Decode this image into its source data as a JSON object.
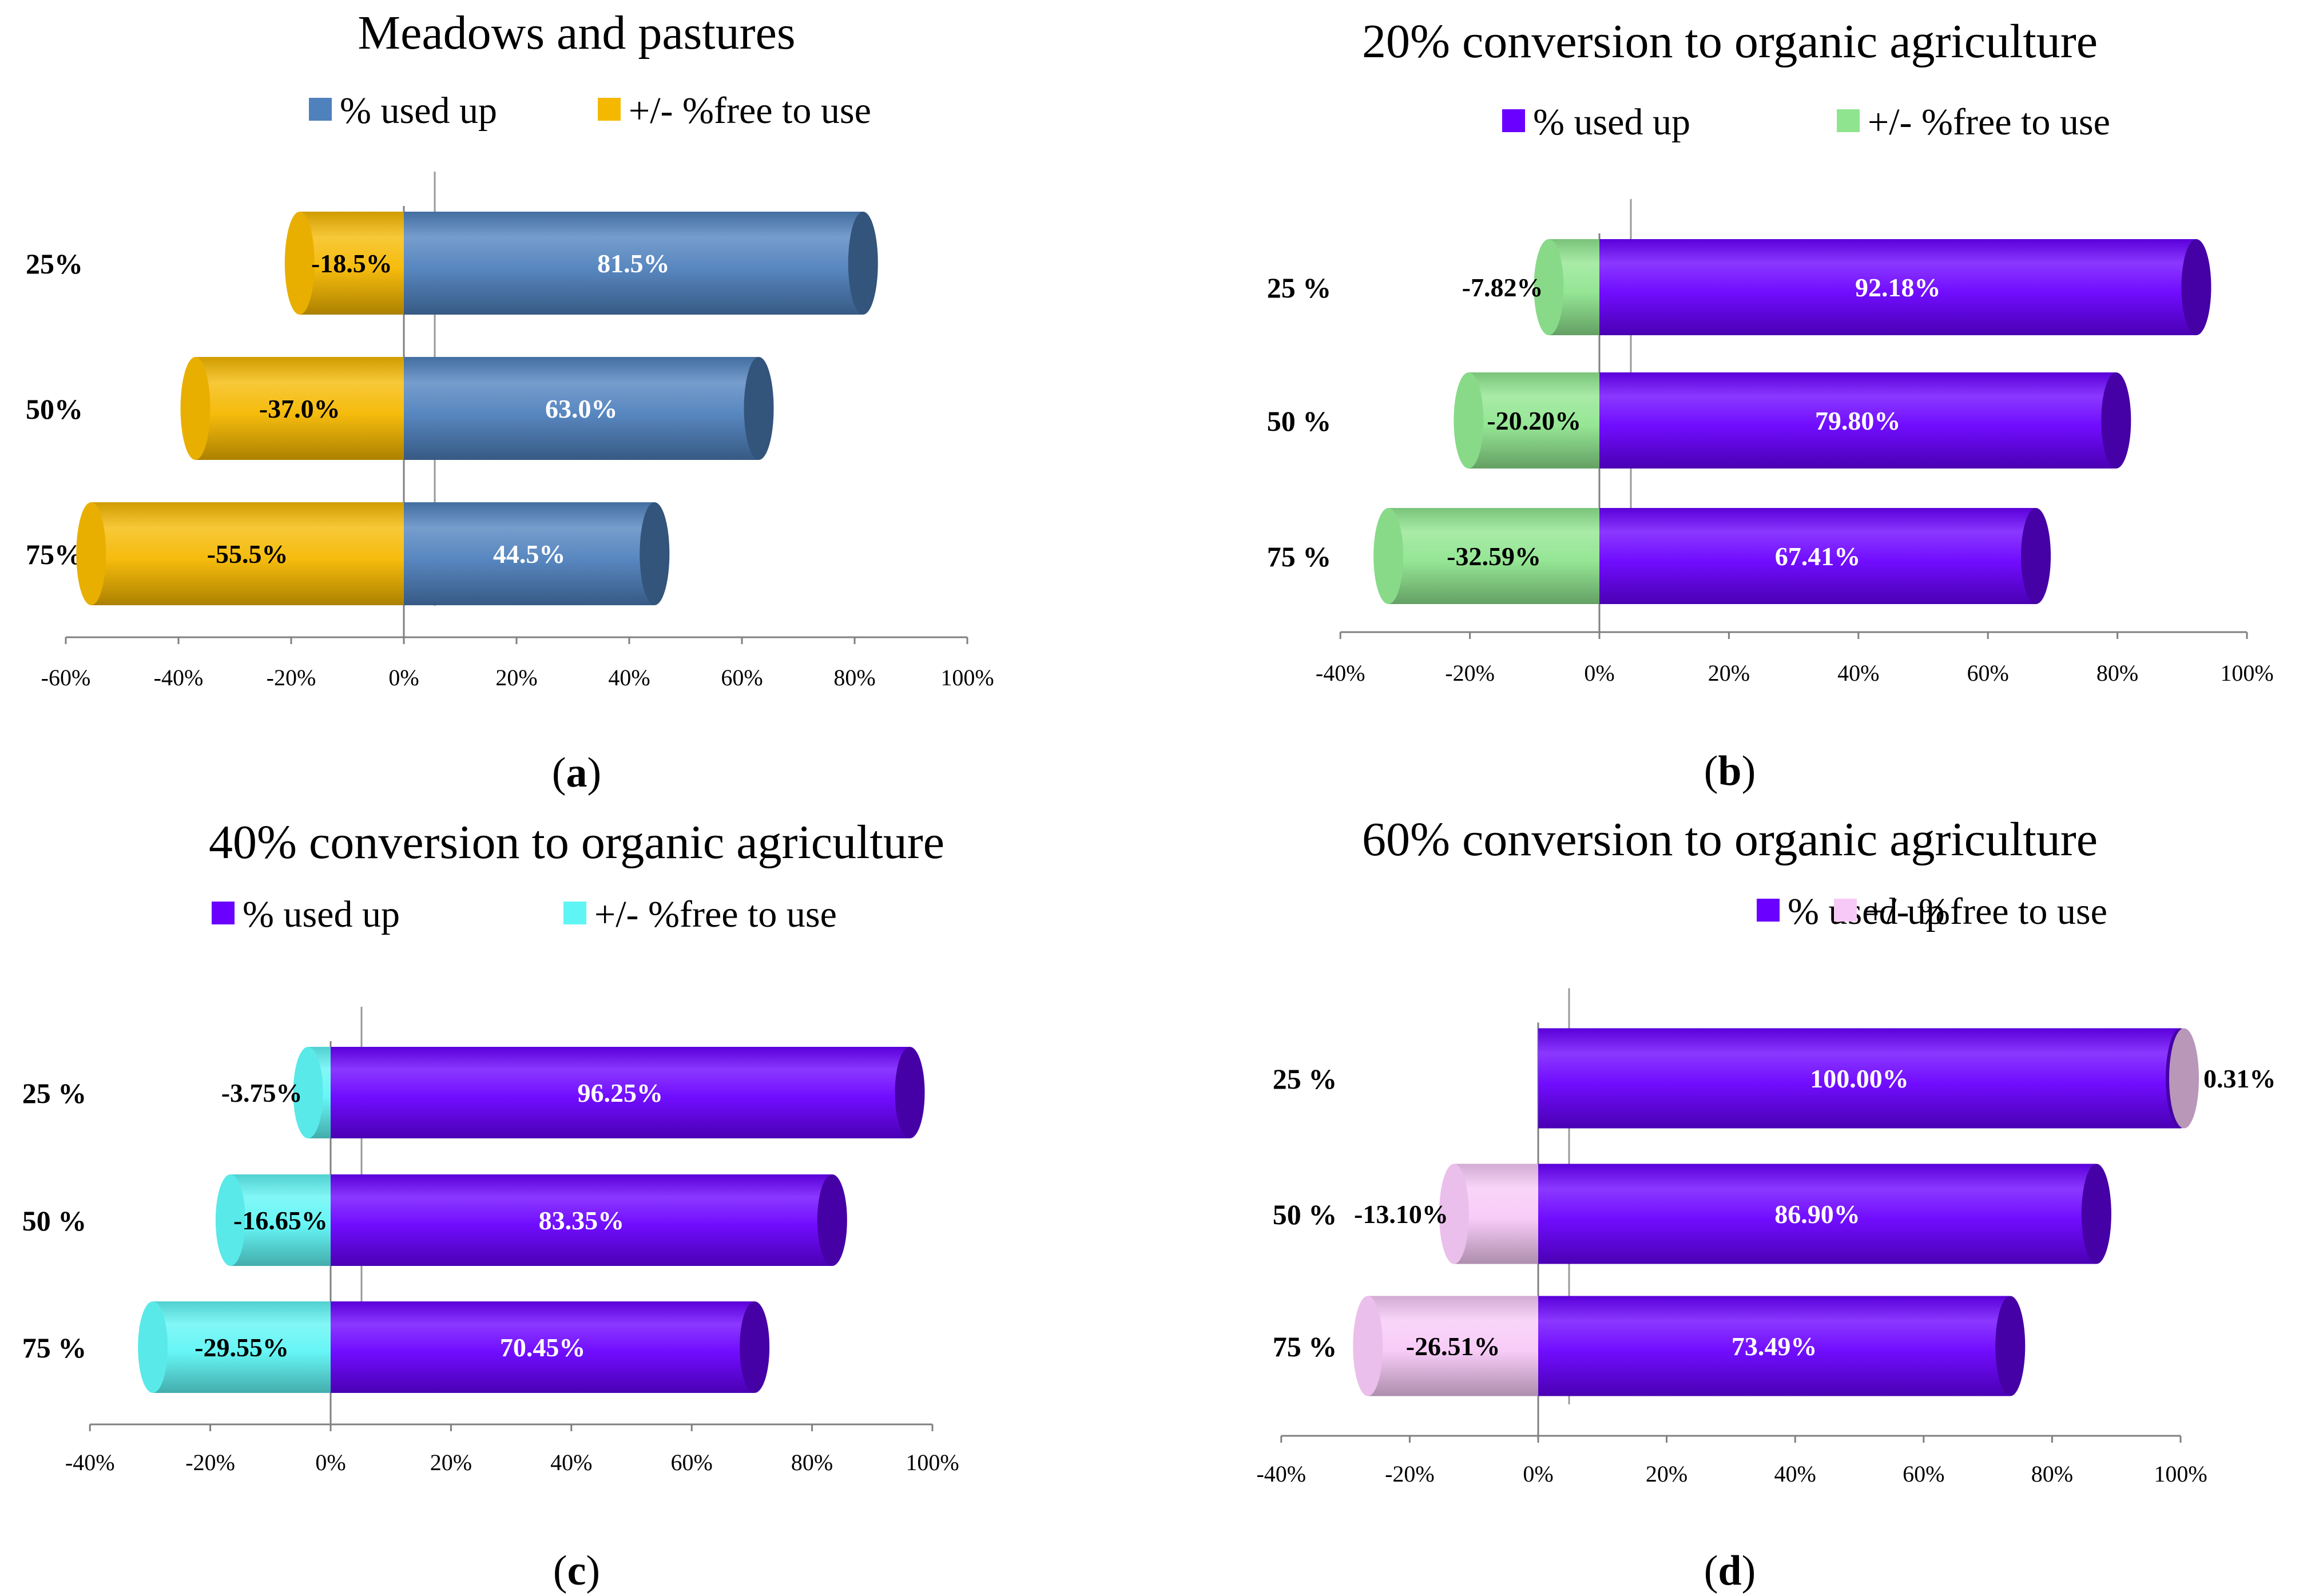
{
  "chart_data": [
    {
      "type": "bar",
      "subtype": "diverging-horizontal-3d-cylinder",
      "title": "Meadows and pastures",
      "caption": "a",
      "categories": [
        "25%",
        "50%",
        "75%"
      ],
      "series": [
        {
          "name": "% used up",
          "values": [
            81.5,
            63.0,
            44.5
          ],
          "labels": [
            "81.5%",
            "63.0%",
            "44.5%"
          ],
          "color": "#4f81bd"
        },
        {
          "name": "+/- %free to use",
          "values": [
            -18.5,
            -37.0,
            -55.5
          ],
          "labels": [
            "-18.5%",
            "-37.0%",
            "-55.5%"
          ],
          "color": "#f5b800"
        }
      ],
      "xlim": [
        -60,
        100
      ],
      "ticks": [
        "-60%",
        "-40%",
        "-20%",
        "0%",
        "20%",
        "40%",
        "60%",
        "80%",
        "100%"
      ],
      "legend_position": "top-center"
    },
    {
      "type": "bar",
      "subtype": "diverging-horizontal-3d-cylinder",
      "title": "20% conversion to organic agriculture",
      "caption": "b",
      "categories": [
        "25 %",
        "50 %",
        "75 %"
      ],
      "series": [
        {
          "name": "% used up",
          "values": [
            92.18,
            79.8,
            67.41
          ],
          "labels": [
            "92.18%",
            "79.80%",
            "67.41%"
          ],
          "color": "#6a00ff"
        },
        {
          "name": "+/- %free to use",
          "values": [
            -7.82,
            -20.2,
            -32.59
          ],
          "labels": [
            "-7.82%",
            "-20.20%",
            "-32.59%"
          ],
          "color": "#8fe58f"
        }
      ],
      "xlim": [
        -40,
        100
      ],
      "ticks": [
        "-40%",
        "-20%",
        "0%",
        "20%",
        "40%",
        "60%",
        "80%",
        "100%"
      ],
      "legend_position": "top-center"
    },
    {
      "type": "bar",
      "subtype": "diverging-horizontal-3d-cylinder",
      "title": "40% conversion to organic agriculture",
      "caption": "c",
      "categories": [
        "25 %",
        "50 %",
        "75 %"
      ],
      "series": [
        {
          "name": "% used up",
          "values": [
            96.25,
            83.35,
            70.45
          ],
          "labels": [
            "96.25%",
            "83.35%",
            "70.45%"
          ],
          "color": "#6a00ff"
        },
        {
          "name": "+/- %free to use",
          "values": [
            -3.75,
            -16.65,
            -29.55
          ],
          "labels": [
            "-3.75%",
            "-16.65%",
            "-29.55%"
          ],
          "color": "#5ff5f5"
        }
      ],
      "xlim": [
        -40,
        100
      ],
      "ticks": [
        "-40%",
        "-20%",
        "0%",
        "20%",
        "40%",
        "60%",
        "80%",
        "100%"
      ],
      "legend_position": "top-center"
    },
    {
      "type": "bar",
      "subtype": "diverging-horizontal-3d-cylinder",
      "title": "60% conversion to organic agriculture",
      "caption": "d",
      "categories": [
        "25 %",
        "50 %",
        "75 %"
      ],
      "series": [
        {
          "name": "% used up",
          "values": [
            100.0,
            86.9,
            73.49
          ],
          "labels": [
            "100.00%",
            "86.90%",
            "73.49%"
          ],
          "color": "#6a00ff"
        },
        {
          "name": "+/- %free to use",
          "values": [
            0.31,
            -13.1,
            -26.51
          ],
          "labels": [
            "0.31%",
            "-13.10%",
            "-26.51%"
          ],
          "color": "#f7c9f7"
        }
      ],
      "xlim": [
        -40,
        100
      ],
      "ticks": [
        "-40%",
        "-20%",
        "0%",
        "20%",
        "40%",
        "60%",
        "80%",
        "100%"
      ],
      "legend_position": "top-center"
    }
  ]
}
